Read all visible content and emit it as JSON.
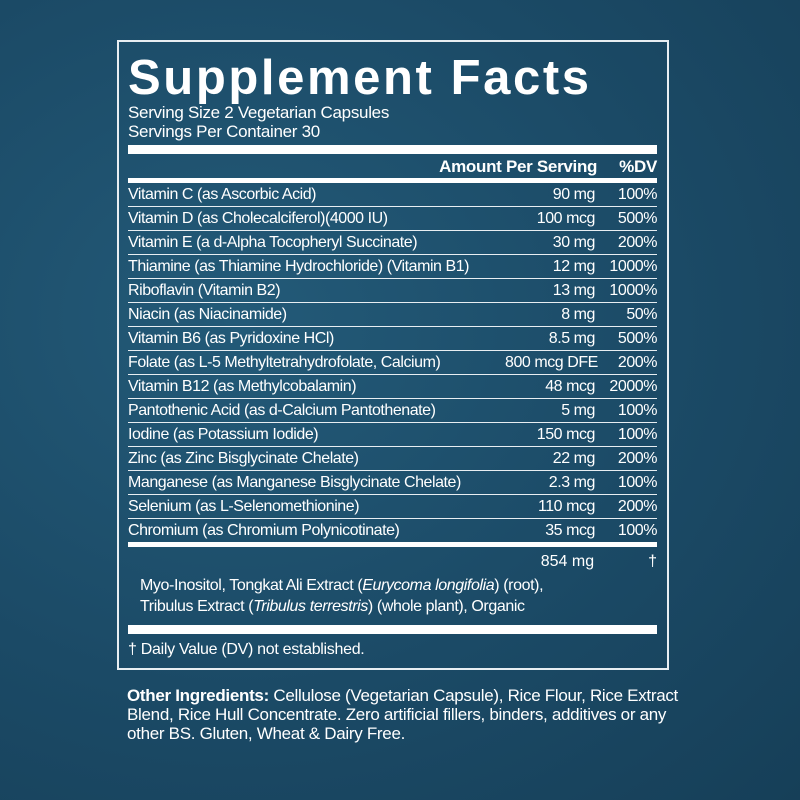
{
  "title": "Supplement Facts",
  "serving_size": "Serving Size 2 Vegetarian Capsules",
  "servings_per_container": "Servings Per Container 30",
  "header": {
    "amount": "Amount Per Serving",
    "dv": "%DV"
  },
  "rows": [
    {
      "name": "Vitamin C (as Ascorbic Acid)",
      "amount": "90 mg",
      "dv": "100%"
    },
    {
      "name": "Vitamin D (as Cholecalciferol)(4000 IU)",
      "amount": "100 mcg",
      "dv": "500%"
    },
    {
      "name": "Vitamin E (a d-Alpha Tocopheryl Succinate)",
      "amount": "30 mg",
      "dv": "200%"
    },
    {
      "name": "Thiamine (as Thiamine Hydrochloride) (Vitamin B1)",
      "amount": "12 mg",
      "dv": "1000%"
    },
    {
      "name": "Riboflavin (Vitamin B2)",
      "amount": "13 mg",
      "dv": "1000%"
    },
    {
      "name": "Niacin (as Niacinamide)",
      "amount": "8 mg",
      "dv": "50%"
    },
    {
      "name": "Vitamin B6 (as Pyridoxine HCl)",
      "amount": "8.5 mg",
      "dv": "500%"
    },
    {
      "name": "Folate (as L-5 Methyltetrahydrofolate, Calcium)",
      "amount": "800 mcg DFE",
      "dv": "200%"
    },
    {
      "name": "Vitamin B12 (as Methylcobalamin)",
      "amount": "48 mcg",
      "dv": "2000%"
    },
    {
      "name": "Pantothenic Acid (as d-Calcium Pantothenate)",
      "amount": "5 mg",
      "dv": "100%"
    },
    {
      "name": "Iodine (as Potassium Iodide)",
      "amount": "150 mcg",
      "dv": "100%"
    },
    {
      "name": "Zinc (as Zinc Bisglycinate Chelate)",
      "amount": "22 mg",
      "dv": "200%"
    },
    {
      "name": "Manganese (as Manganese Bisglycinate Chelate)",
      "amount": "2.3 mg",
      "dv": "100%"
    },
    {
      "name": "Selenium (as L-Selenomethionine)",
      "amount": "110 mcg",
      "dv": "200%"
    },
    {
      "name": "Chromium (as Chromium Polynicotinate)",
      "amount": "35 mcg",
      "dv": "100%"
    }
  ],
  "blend": {
    "amount": "854 mg",
    "dv": "†",
    "line1_a": "Myo-Inositol, Tongkat Ali Extract (",
    "line1_i": "Eurycoma longifolia",
    "line1_b": ") (root),",
    "line2_a": "Tribulus Extract (",
    "line2_i": "Tribulus terrestris",
    "line2_b": ") (whole plant), Organic"
  },
  "footnote": "† Daily Value (DV) not established.",
  "other_ingredients": {
    "label": "Other Ingredients:",
    "text": " Cellulose (Vegetarian Capsule), Rice Flour, Rice Extract Blend, Rice Hull Concentrate. Zero artificial fillers, binders, additives or any other BS. Gluten, Wheat & Dairy Free."
  }
}
